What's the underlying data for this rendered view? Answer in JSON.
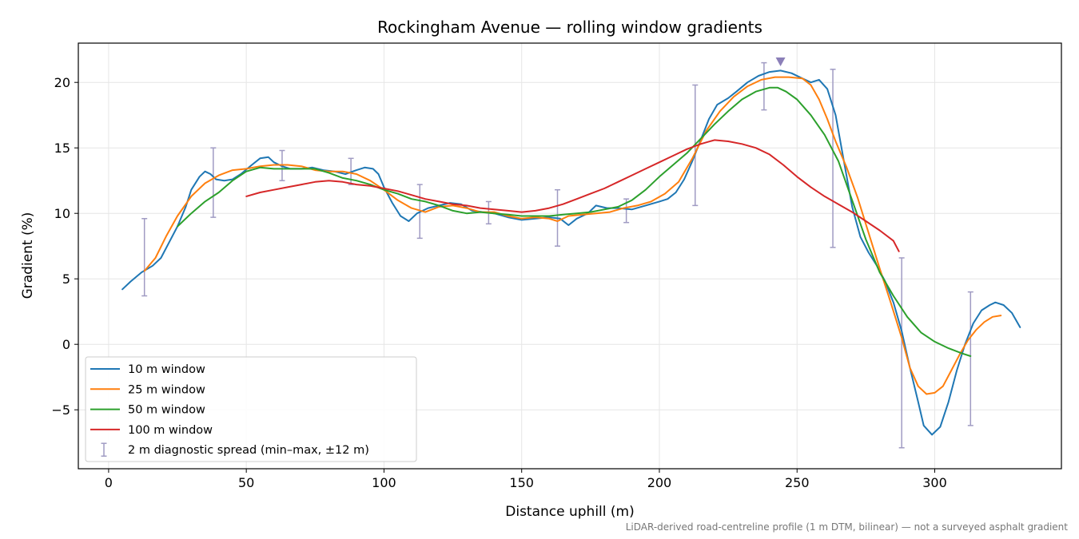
{
  "chart_data": {
    "type": "line",
    "title": "Rockingham Avenue — rolling window gradients",
    "xlabel": "Distance uphill (m)",
    "ylabel": "Gradient (%)",
    "footnote": "LiDAR-derived road-centreline profile (1 m DTM, bilinear) — not a surveyed asphalt gradient",
    "xlim": [
      -11,
      346
    ],
    "ylim": [
      -9.5,
      23
    ],
    "xticks": [
      0,
      50,
      100,
      150,
      200,
      250,
      300
    ],
    "yticks": [
      -5,
      0,
      5,
      10,
      15,
      20
    ],
    "grid": true,
    "legend_position": "lower-left",
    "series": [
      {
        "name": "10 m window",
        "color": "#1f77b4",
        "points": [
          [
            5,
            4.2
          ],
          [
            8,
            4.8
          ],
          [
            12,
            5.5
          ],
          [
            16,
            6.0
          ],
          [
            19,
            6.6
          ],
          [
            22,
            7.8
          ],
          [
            25,
            9.0
          ],
          [
            28,
            10.5
          ],
          [
            30,
            11.8
          ],
          [
            33,
            12.8
          ],
          [
            35,
            13.2
          ],
          [
            37,
            13.0
          ],
          [
            39,
            12.6
          ],
          [
            42,
            12.5
          ],
          [
            45,
            12.6
          ],
          [
            48,
            13.0
          ],
          [
            52,
            13.7
          ],
          [
            55,
            14.2
          ],
          [
            58,
            14.3
          ],
          [
            60,
            13.9
          ],
          [
            63,
            13.6
          ],
          [
            66,
            13.4
          ],
          [
            70,
            13.4
          ],
          [
            74,
            13.5
          ],
          [
            78,
            13.3
          ],
          [
            82,
            13.2
          ],
          [
            86,
            13.0
          ],
          [
            90,
            13.3
          ],
          [
            93,
            13.5
          ],
          [
            96,
            13.4
          ],
          [
            98,
            13.0
          ],
          [
            100,
            12.0
          ],
          [
            103,
            10.8
          ],
          [
            106,
            9.8
          ],
          [
            109,
            9.4
          ],
          [
            112,
            10.0
          ],
          [
            116,
            10.4
          ],
          [
            120,
            10.6
          ],
          [
            124,
            10.8
          ],
          [
            128,
            10.7
          ],
          [
            132,
            10.2
          ],
          [
            136,
            10.1
          ],
          [
            140,
            10.0
          ],
          [
            145,
            9.7
          ],
          [
            150,
            9.5
          ],
          [
            155,
            9.6
          ],
          [
            160,
            9.7
          ],
          [
            164,
            9.6
          ],
          [
            167,
            9.1
          ],
          [
            170,
            9.6
          ],
          [
            174,
            10.0
          ],
          [
            177,
            10.6
          ],
          [
            181,
            10.4
          ],
          [
            185,
            10.4
          ],
          [
            190,
            10.3
          ],
          [
            195,
            10.6
          ],
          [
            200,
            10.9
          ],
          [
            203,
            11.1
          ],
          [
            206,
            11.6
          ],
          [
            209,
            12.6
          ],
          [
            212,
            14.0
          ],
          [
            215,
            15.6
          ],
          [
            218,
            17.2
          ],
          [
            221,
            18.3
          ],
          [
            225,
            18.8
          ],
          [
            228,
            19.3
          ],
          [
            232,
            20.0
          ],
          [
            236,
            20.5
          ],
          [
            240,
            20.8
          ],
          [
            244,
            20.9
          ],
          [
            248,
            20.7
          ],
          [
            252,
            20.3
          ],
          [
            255,
            20.0
          ],
          [
            258,
            20.2
          ],
          [
            261,
            19.5
          ],
          [
            264,
            17.5
          ],
          [
            267,
            14.0
          ],
          [
            270,
            10.5
          ],
          [
            273,
            8.2
          ],
          [
            276,
            7.0
          ],
          [
            279,
            6.0
          ],
          [
            282,
            4.8
          ],
          [
            285,
            3.2
          ],
          [
            288,
            1.0
          ],
          [
            291,
            -1.8
          ],
          [
            294,
            -4.4
          ],
          [
            296,
            -6.2
          ],
          [
            299,
            -6.9
          ],
          [
            302,
            -6.3
          ],
          [
            305,
            -4.4
          ],
          [
            308,
            -2.0
          ],
          [
            311,
            0.0
          ],
          [
            314,
            1.6
          ],
          [
            317,
            2.6
          ],
          [
            320,
            3.0
          ],
          [
            322,
            3.2
          ],
          [
            325,
            3.0
          ],
          [
            328,
            2.4
          ],
          [
            331,
            1.3
          ]
        ]
      },
      {
        "name": "25 m window",
        "color": "#ff7f0e",
        "points": [
          [
            13,
            5.6
          ],
          [
            17,
            6.6
          ],
          [
            21,
            8.3
          ],
          [
            25,
            9.8
          ],
          [
            30,
            11.3
          ],
          [
            35,
            12.3
          ],
          [
            40,
            12.9
          ],
          [
            45,
            13.3
          ],
          [
            50,
            13.4
          ],
          [
            55,
            13.6
          ],
          [
            60,
            13.7
          ],
          [
            65,
            13.7
          ],
          [
            70,
            13.6
          ],
          [
            75,
            13.3
          ],
          [
            80,
            13.2
          ],
          [
            85,
            13.2
          ],
          [
            90,
            13.0
          ],
          [
            95,
            12.5
          ],
          [
            100,
            11.8
          ],
          [
            105,
            11.0
          ],
          [
            110,
            10.4
          ],
          [
            115,
            10.1
          ],
          [
            120,
            10.5
          ],
          [
            125,
            10.6
          ],
          [
            130,
            10.4
          ],
          [
            135,
            10.1
          ],
          [
            140,
            10.1
          ],
          [
            145,
            9.8
          ],
          [
            150,
            9.6
          ],
          [
            155,
            9.7
          ],
          [
            160,
            9.6
          ],
          [
            163,
            9.4
          ],
          [
            167,
            9.8
          ],
          [
            172,
            9.9
          ],
          [
            177,
            10.0
          ],
          [
            182,
            10.1
          ],
          [
            187,
            10.4
          ],
          [
            192,
            10.6
          ],
          [
            197,
            10.9
          ],
          [
            202,
            11.5
          ],
          [
            207,
            12.4
          ],
          [
            212,
            14.2
          ],
          [
            217,
            16.3
          ],
          [
            222,
            17.8
          ],
          [
            227,
            18.9
          ],
          [
            232,
            19.7
          ],
          [
            237,
            20.2
          ],
          [
            242,
            20.4
          ],
          [
            247,
            20.4
          ],
          [
            252,
            20.3
          ],
          [
            255,
            19.8
          ],
          [
            258,
            18.7
          ],
          [
            261,
            17.2
          ],
          [
            264,
            15.5
          ],
          [
            268,
            13.5
          ],
          [
            272,
            11.2
          ],
          [
            276,
            8.5
          ],
          [
            280,
            5.8
          ],
          [
            284,
            3.2
          ],
          [
            288,
            0.5
          ],
          [
            291,
            -1.8
          ],
          [
            294,
            -3.2
          ],
          [
            297,
            -3.8
          ],
          [
            300,
            -3.7
          ],
          [
            303,
            -3.2
          ],
          [
            306,
            -2.0
          ],
          [
            309,
            -0.8
          ],
          [
            312,
            0.3
          ],
          [
            315,
            1.1
          ],
          [
            318,
            1.7
          ],
          [
            321,
            2.1
          ],
          [
            324,
            2.2
          ]
        ]
      },
      {
        "name": "50 m window",
        "color": "#2ca02c",
        "points": [
          [
            25,
            9.0
          ],
          [
            30,
            10.0
          ],
          [
            35,
            10.9
          ],
          [
            40,
            11.6
          ],
          [
            45,
            12.5
          ],
          [
            50,
            13.2
          ],
          [
            55,
            13.5
          ],
          [
            60,
            13.4
          ],
          [
            65,
            13.4
          ],
          [
            70,
            13.4
          ],
          [
            75,
            13.4
          ],
          [
            80,
            13.1
          ],
          [
            85,
            12.7
          ],
          [
            90,
            12.5
          ],
          [
            95,
            12.2
          ],
          [
            100,
            11.8
          ],
          [
            105,
            11.5
          ],
          [
            110,
            11.1
          ],
          [
            115,
            10.9
          ],
          [
            120,
            10.6
          ],
          [
            125,
            10.2
          ],
          [
            130,
            10.0
          ],
          [
            135,
            10.1
          ],
          [
            140,
            10.0
          ],
          [
            145,
            9.9
          ],
          [
            150,
            9.8
          ],
          [
            155,
            9.8
          ],
          [
            160,
            9.8
          ],
          [
            165,
            9.9
          ],
          [
            170,
            10.0
          ],
          [
            175,
            10.1
          ],
          [
            180,
            10.3
          ],
          [
            185,
            10.5
          ],
          [
            190,
            11.0
          ],
          [
            195,
            11.8
          ],
          [
            200,
            12.8
          ],
          [
            205,
            13.7
          ],
          [
            210,
            14.6
          ],
          [
            215,
            15.7
          ],
          [
            220,
            16.8
          ],
          [
            225,
            17.8
          ],
          [
            230,
            18.7
          ],
          [
            235,
            19.3
          ],
          [
            240,
            19.6
          ],
          [
            243,
            19.6
          ],
          [
            246,
            19.3
          ],
          [
            250,
            18.7
          ],
          [
            255,
            17.5
          ],
          [
            260,
            16.0
          ],
          [
            265,
            14.0
          ],
          [
            270,
            11.0
          ],
          [
            275,
            8.0
          ],
          [
            280,
            5.5
          ],
          [
            285,
            3.7
          ],
          [
            290,
            2.1
          ],
          [
            295,
            0.9
          ],
          [
            300,
            0.2
          ],
          [
            305,
            -0.3
          ],
          [
            310,
            -0.7
          ],
          [
            313,
            -0.9
          ]
        ]
      },
      {
        "name": "100 m window",
        "color": "#d62728",
        "points": [
          [
            50,
            11.3
          ],
          [
            55,
            11.6
          ],
          [
            60,
            11.8
          ],
          [
            65,
            12.0
          ],
          [
            70,
            12.2
          ],
          [
            75,
            12.4
          ],
          [
            80,
            12.5
          ],
          [
            85,
            12.4
          ],
          [
            90,
            12.2
          ],
          [
            95,
            12.1
          ],
          [
            100,
            11.9
          ],
          [
            105,
            11.7
          ],
          [
            110,
            11.4
          ],
          [
            115,
            11.1
          ],
          [
            120,
            10.9
          ],
          [
            125,
            10.7
          ],
          [
            130,
            10.6
          ],
          [
            135,
            10.4
          ],
          [
            140,
            10.3
          ],
          [
            145,
            10.2
          ],
          [
            150,
            10.1
          ],
          [
            155,
            10.2
          ],
          [
            160,
            10.4
          ],
          [
            165,
            10.7
          ],
          [
            170,
            11.1
          ],
          [
            175,
            11.5
          ],
          [
            180,
            11.9
          ],
          [
            185,
            12.4
          ],
          [
            190,
            12.9
          ],
          [
            195,
            13.4
          ],
          [
            200,
            13.9
          ],
          [
            205,
            14.4
          ],
          [
            210,
            14.9
          ],
          [
            215,
            15.3
          ],
          [
            220,
            15.6
          ],
          [
            225,
            15.5
          ],
          [
            230,
            15.3
          ],
          [
            235,
            15.0
          ],
          [
            240,
            14.5
          ],
          [
            245,
            13.7
          ],
          [
            250,
            12.8
          ],
          [
            255,
            12.0
          ],
          [
            260,
            11.3
          ],
          [
            265,
            10.7
          ],
          [
            270,
            10.1
          ],
          [
            275,
            9.4
          ],
          [
            280,
            8.7
          ],
          [
            285,
            7.9
          ],
          [
            287,
            7.1
          ]
        ]
      }
    ],
    "errorbars": {
      "name": "2 m diagnostic spread (min–max, ±12 m)",
      "color": "#a09bc3",
      "bars": [
        [
          13,
          3.7,
          9.6
        ],
        [
          38,
          9.7,
          15.0
        ],
        [
          63,
          12.5,
          14.8
        ],
        [
          88,
          12.2,
          14.2
        ],
        [
          113,
          8.1,
          12.2
        ],
        [
          138,
          9.2,
          10.9
        ],
        [
          163,
          7.5,
          11.8
        ],
        [
          188,
          9.3,
          11.1
        ],
        [
          213,
          10.6,
          19.8
        ],
        [
          238,
          17.9,
          21.5
        ],
        [
          263,
          7.4,
          21.0
        ],
        [
          288,
          -7.9,
          6.6
        ],
        [
          313,
          -6.2,
          4.0
        ]
      ]
    },
    "peak_marker": {
      "x": 244,
      "y": 21.6,
      "color": "#8b7fb8"
    }
  }
}
